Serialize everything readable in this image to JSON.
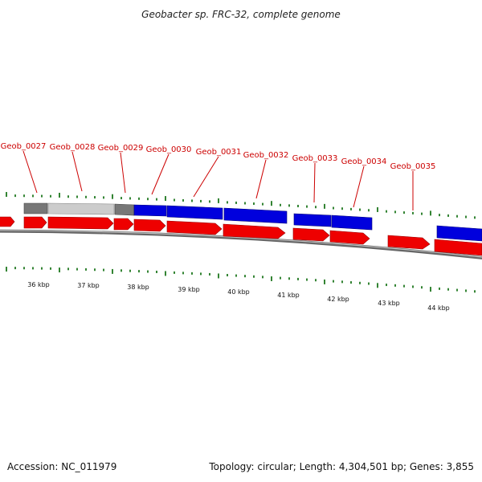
{
  "title": "Geobacter sp. FRC-32, complete genome",
  "colors": {
    "label": "#cc0000",
    "red": "#ee0000",
    "blue": "#0000dd",
    "dark_gray": "#777777",
    "light_gray": "#cccccc",
    "tick": "#006600",
    "backbone": "#888888"
  },
  "gene_labels": [
    "Geob_0027",
    "Geob_0028",
    "Geob_0029",
    "Geob_0030",
    "Geob_0031",
    "Geob_0032",
    "Geob_0033",
    "Geob_0034",
    "Geob_0035"
  ],
  "kbp_ticks": [
    36,
    37,
    38,
    39,
    40,
    41,
    42,
    43,
    44
  ],
  "kbp_unit": "kbp",
  "footer": {
    "accession": "Accession: NC_011979",
    "summary": "Topology: circular; Length: 4,304,501 bp; Genes: 3,855"
  }
}
